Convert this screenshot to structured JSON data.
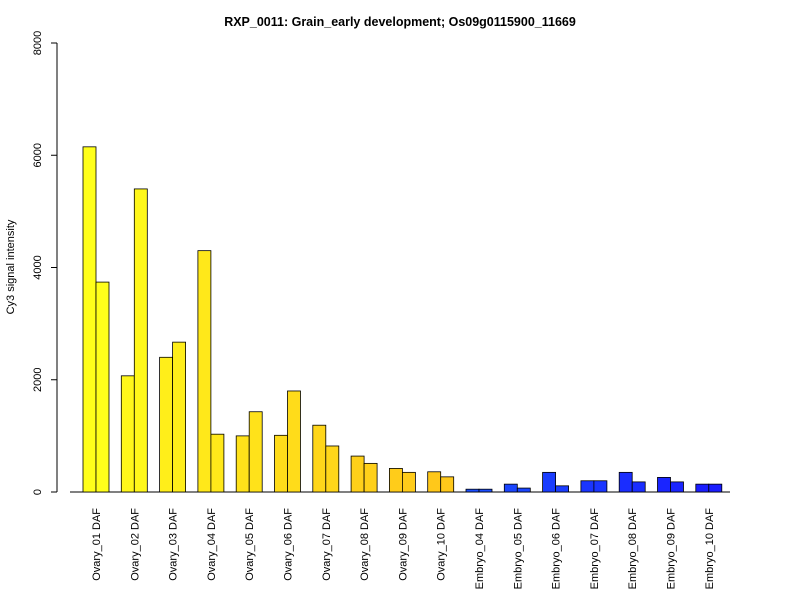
{
  "chart_data": {
    "type": "bar",
    "title": "RXP_0011: Grain_early development; Os09g0115900_11669",
    "xlabel": "",
    "ylabel": "Cy3 signal intensity",
    "ylim": [
      0,
      8000
    ],
    "yticks": [
      0,
      2000,
      4000,
      6000,
      8000
    ],
    "grid": false,
    "categories": [
      "Ovary_01 DAF",
      "Ovary_02 DAF",
      "Ovary_03 DAF",
      "Ovary_04 DAF",
      "Ovary_05 DAF",
      "Ovary_06 DAF",
      "Ovary_07 DAF",
      "Ovary_08 DAF",
      "Ovary_09 DAF",
      "Ovary_10 DAF",
      "Embryo_04 DAF",
      "Embryo_05 DAF",
      "Embryo_06 DAF",
      "Embryo_07 DAF",
      "Embryo_08 DAF",
      "Embryo_09 DAF",
      "Embryo_10 DAF"
    ],
    "series": [
      {
        "values": [
          6150,
          2070,
          2400,
          4300,
          1000,
          1010,
          1190,
          640,
          420,
          360,
          50,
          140,
          350,
          200,
          350,
          260,
          140
        ]
      },
      {
        "values": [
          3740,
          5400,
          2670,
          1030,
          1430,
          1800,
          820,
          510,
          350,
          270,
          50,
          70,
          110,
          200,
          180,
          180,
          140
        ]
      }
    ],
    "bar_colors": [
      "#ffff1a",
      "#fff71a",
      "#ffee1a",
      "#ffe81a",
      "#ffe21a",
      "#ffdc1a",
      "#ffd61a",
      "#ffd01a",
      "#ffcc1a",
      "#ffc81a",
      "#1a4dff",
      "#1a45ff",
      "#1a3dff",
      "#1a35ff",
      "#1a2dff",
      "#1a25ff",
      "#1a1dff"
    ]
  }
}
